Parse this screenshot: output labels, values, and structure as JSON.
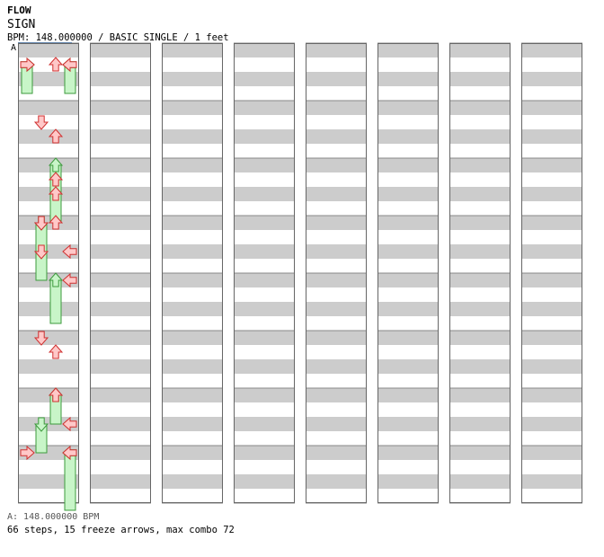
{
  "header": {
    "title": "FLOW",
    "subtitle": "SIGN",
    "info": "BPM: 148.000000 / BASIC SINGLE / 1 feet",
    "marker": "A"
  },
  "footer": {
    "bpm": "A: 148.000000 BPM",
    "stats": "66 steps, 15 freeze arrows, max combo 72"
  },
  "colors": {
    "red": "#d03030",
    "blue": "#2060c0",
    "freeze": "#3d9a3d",
    "band": "#cccccc"
  },
  "chart_data": {
    "type": "step-chart",
    "units": "beats",
    "columns": 8,
    "beats_per_column": 32,
    "lanes": [
      "left",
      "down",
      "up",
      "right"
    ],
    "arrows": [
      {
        "beat": 1,
        "lane": "up",
        "color": "red"
      },
      {
        "beat": 1,
        "lane": "left",
        "color": "red"
      },
      {
        "beat": 1,
        "lane": "right",
        "color": "red"
      },
      {
        "beat": 5,
        "lane": "down",
        "color": "red"
      },
      {
        "beat": 6,
        "lane": "up",
        "color": "red"
      },
      {
        "beat": 9,
        "lane": "up",
        "color": "red"
      },
      {
        "beat": 10,
        "lane": "up",
        "color": "red"
      },
      {
        "beat": 12,
        "lane": "down",
        "color": "red"
      },
      {
        "beat": 12,
        "lane": "up",
        "color": "red"
      },
      {
        "beat": 14,
        "lane": "down",
        "color": "red"
      },
      {
        "beat": 14,
        "lane": "right",
        "color": "red"
      },
      {
        "beat": 16,
        "lane": "right",
        "color": "red"
      },
      {
        "beat": 20,
        "lane": "down",
        "color": "red"
      },
      {
        "beat": 21,
        "lane": "up",
        "color": "red"
      },
      {
        "beat": 24,
        "lane": "up",
        "color": "red"
      },
      {
        "beat": 26,
        "lane": "right",
        "color": "red"
      },
      {
        "beat": 28,
        "lane": "left",
        "color": "red"
      },
      {
        "beat": 28,
        "lane": "right",
        "color": "red"
      }
    ],
    "freezes": [
      {
        "start": 1,
        "end": 3,
        "lane": "left"
      },
      {
        "start": 1,
        "end": 3,
        "lane": "right"
      },
      {
        "start": 8,
        "end": 12,
        "lane": "up"
      },
      {
        "start": 12,
        "end": 16,
        "lane": "down"
      },
      {
        "start": 16,
        "end": 19,
        "lane": "up"
      },
      {
        "start": 24,
        "end": 26,
        "lane": "up"
      },
      {
        "start": 26,
        "end": 28,
        "lane": "down"
      },
      {
        "start": 28,
        "end": 32,
        "lane": "right"
      }
    ]
  }
}
